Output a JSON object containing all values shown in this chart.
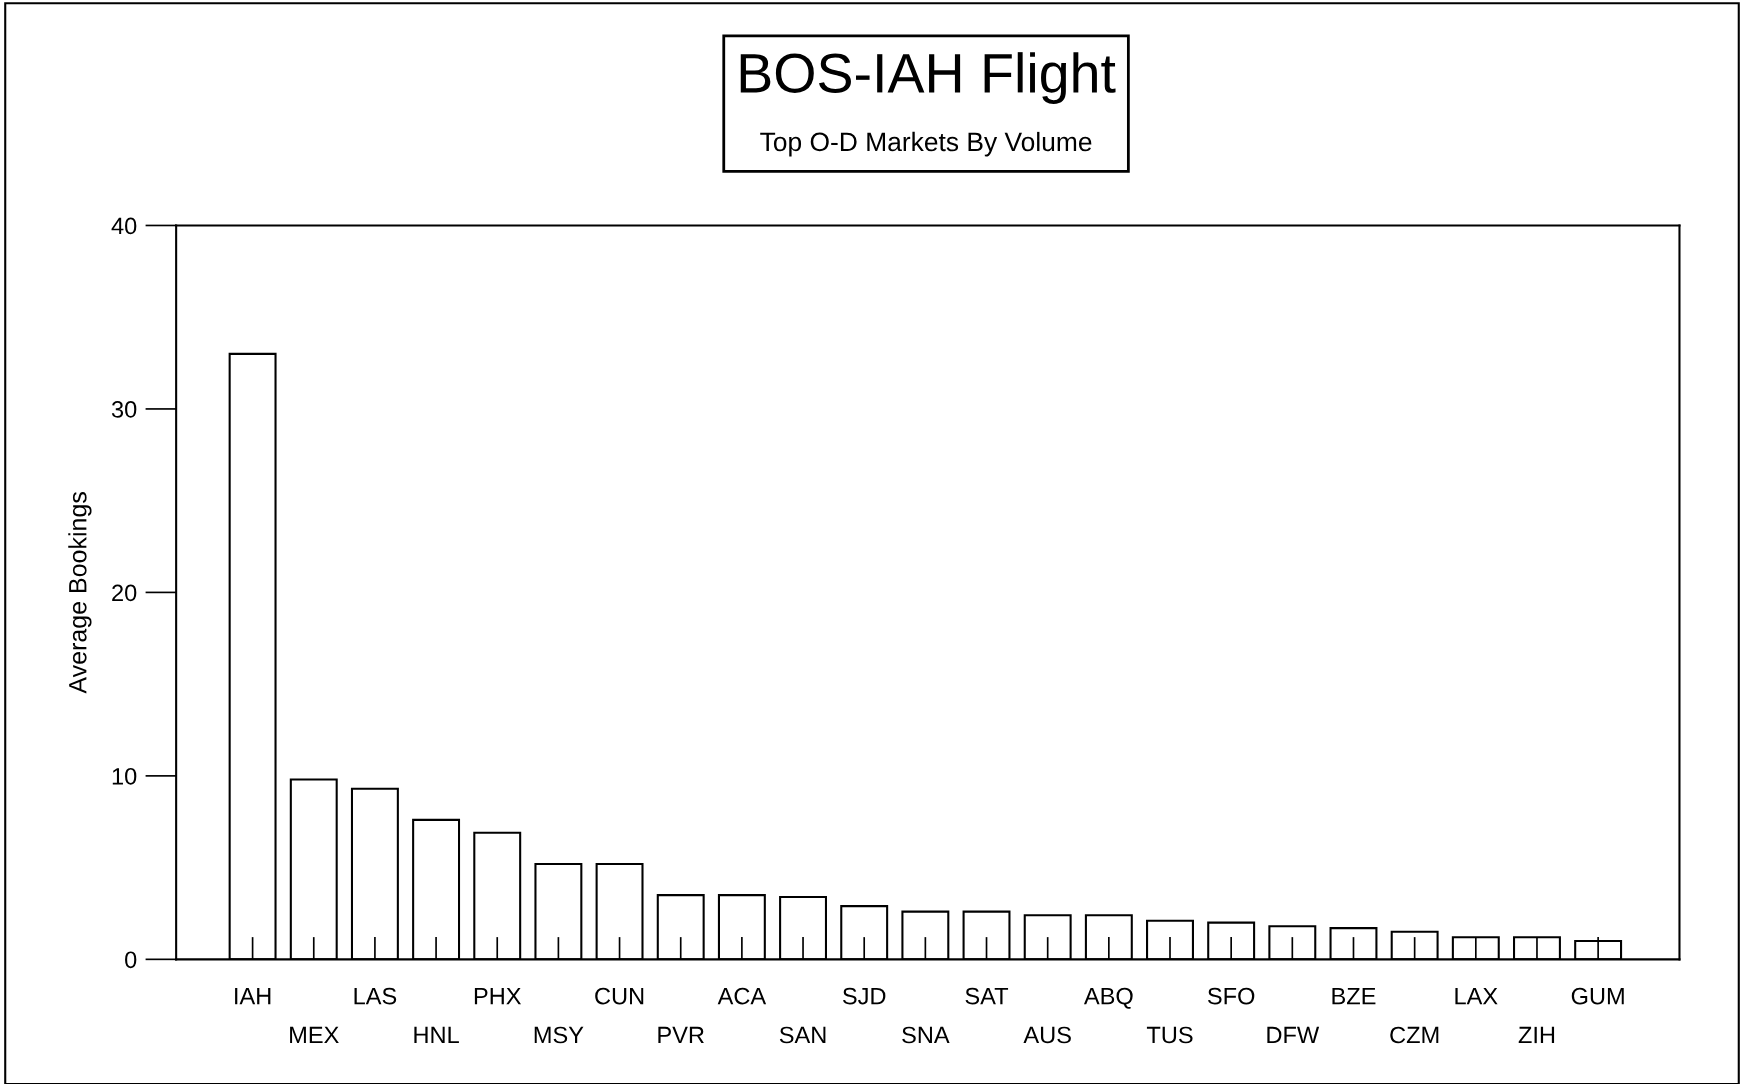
{
  "chart_data": {
    "type": "bar",
    "title": "BOS-IAH Flight",
    "subtitle": "Top O-D Markets By Volume",
    "ylabel": "Average Bookings",
    "categories": [
      "IAH",
      "MEX",
      "LAS",
      "HNL",
      "PHX",
      "MSY",
      "CUN",
      "PVR",
      "ACA",
      "SAN",
      "SJD",
      "SNA",
      "SAT",
      "AUS",
      "ABQ",
      "TUS",
      "SFO",
      "DFW",
      "BZE",
      "CZM",
      "LAX",
      "ZIH",
      "GUM"
    ],
    "values": [
      33.0,
      9.8,
      9.3,
      7.6,
      6.9,
      5.2,
      5.2,
      3.5,
      3.5,
      3.4,
      2.9,
      2.6,
      2.6,
      2.4,
      2.4,
      2.1,
      2.0,
      1.8,
      1.7,
      1.5,
      1.2,
      1.2,
      1.0
    ],
    "color": "#ffffff",
    "ylim": [
      0,
      40
    ],
    "yticks": [
      0,
      10,
      20,
      30,
      40
    ],
    "grid": false,
    "legend": false
  }
}
